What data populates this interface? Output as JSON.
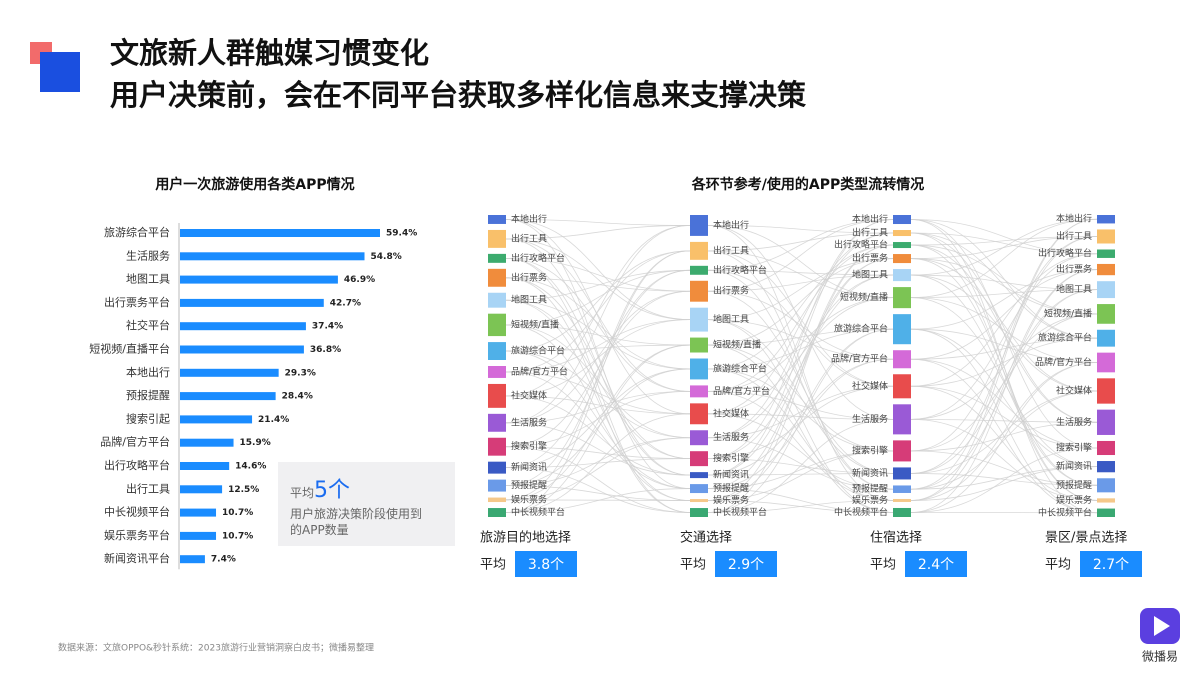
{
  "header": {
    "title": "文旅新人群触媒习惯变化",
    "subtitle": "用户决策前，会在不同平台获取多样化信息来支撑决策"
  },
  "chart_data": {
    "type": "bar",
    "orientation": "horizontal",
    "title": "用户一次旅游使用各类APP情况",
    "categories": [
      "旅游综合平台",
      "生活服务",
      "地图工具",
      "出行票务平台",
      "社交平台",
      "短视频/直播平台",
      "本地出行",
      "预报提醒",
      "搜索引起",
      "品牌/官方平台",
      "出行攻略平台",
      "出行工具",
      "中长视频平台",
      "娱乐票务平台",
      "新闻资讯平台"
    ],
    "values": [
      59.4,
      54.8,
      46.9,
      42.7,
      37.4,
      36.8,
      29.3,
      28.4,
      21.4,
      15.9,
      14.6,
      12.5,
      10.7,
      10.7,
      7.4
    ],
    "value_labels": [
      "59.4%",
      "54.8%",
      "46.9%",
      "42.7%",
      "37.4%",
      "36.8%",
      "29.3%",
      "28.4%",
      "21.4%",
      "15.9%",
      "14.6%",
      "12.5%",
      "10.7%",
      "10.7%",
      "7.4%"
    ],
    "color": "#1a8cff"
  },
  "callout": {
    "prefix": "平均",
    "value": "5个",
    "text": "用户旅游决策阶段使用到的APP数量"
  },
  "sankey": {
    "title": "各环节参考/使用的APP类型流转情况",
    "nodes": [
      {
        "label": "本地出行",
        "color": "#4a72d8"
      },
      {
        "label": "出行工具",
        "color": "#f9c06a"
      },
      {
        "label": "出行攻略平台",
        "color": "#3cab6e"
      },
      {
        "label": "出行票务",
        "color": "#f08c3c"
      },
      {
        "label": "地图工具",
        "color": "#a8d4f5"
      },
      {
        "label": "短视频/直播",
        "color": "#7cc454"
      },
      {
        "label": "旅游综合平台",
        "color": "#4fb0e8"
      },
      {
        "label": "品牌/官方平台",
        "color": "#d46ad8"
      },
      {
        "label": "社交媒体",
        "color": "#e84c4c"
      },
      {
        "label": "生活服务",
        "color": "#9a5ad6"
      },
      {
        "label": "搜索引擎",
        "color": "#d63c78"
      },
      {
        "label": "新闻资讯",
        "color": "#3a5ac4"
      },
      {
        "label": "预报提醒",
        "color": "#6a9ae8"
      },
      {
        "label": "娱乐票务",
        "color": "#f5c88a"
      },
      {
        "label": "中长视频平台",
        "color": "#3aa872"
      }
    ],
    "avg_label": "平均",
    "stages": [
      {
        "name": "旅游目的地选择",
        "average": "3.8个",
        "sizes": [
          6,
          12,
          6,
          12,
          10,
          15,
          12,
          8,
          16,
          12,
          12,
          8,
          8,
          3,
          6
        ]
      },
      {
        "name": "交通选择",
        "average": "2.9个",
        "sizes": [
          14,
          12,
          6,
          14,
          16,
          10,
          14,
          8,
          14,
          10,
          10,
          4,
          6,
          2,
          6
        ]
      },
      {
        "name": "住宿选择",
        "average": "2.4个",
        "sizes": [
          6,
          4,
          4,
          6,
          8,
          14,
          20,
          12,
          16,
          20,
          14,
          8,
          5,
          2,
          6
        ]
      },
      {
        "name": "景区/景点选择",
        "average": "2.7个",
        "sizes": [
          6,
          10,
          6,
          8,
          12,
          14,
          12,
          14,
          18,
          18,
          10,
          8,
          10,
          3,
          6
        ]
      }
    ]
  },
  "footer": {
    "source": "数据来源：文旅OPPO&秒针系统：2023旅游行业营销洞察白皮书；微播易整理",
    "logo": "微播易"
  }
}
